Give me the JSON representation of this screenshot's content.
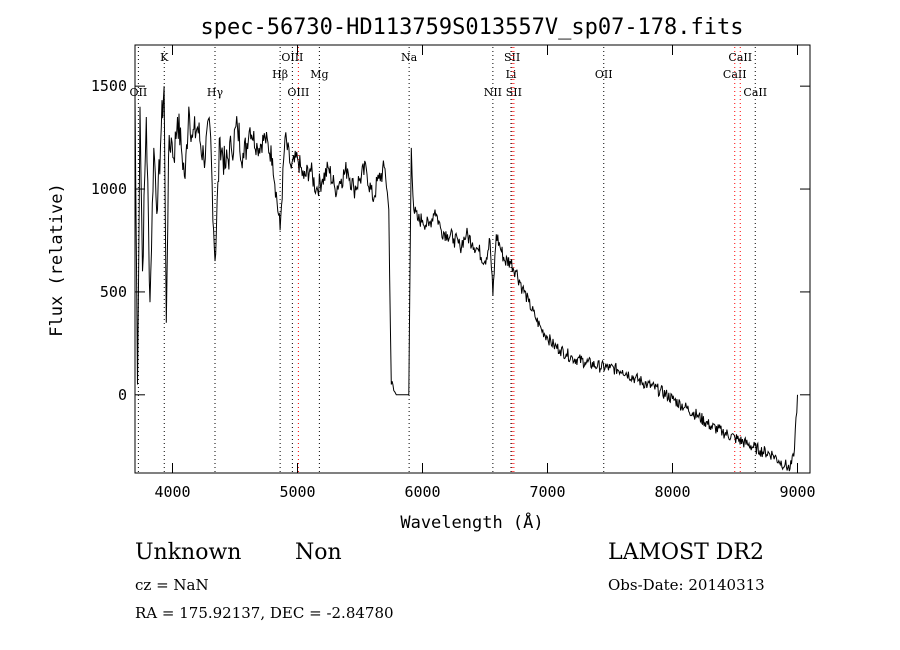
{
  "chart_data": {
    "type": "line",
    "title": "spec-56730-HD113759S013557V_sp07-178.fits",
    "xlabel": "Wavelength (Å)",
    "ylabel": "Flux (relative)",
    "xlim": [
      3700,
      9100
    ],
    "ylim": [
      -380,
      1700
    ],
    "xticks": [
      4000,
      5000,
      6000,
      7000,
      8000,
      9000
    ],
    "yticks": [
      0,
      500,
      1000,
      1500
    ],
    "grid": false,
    "series": [
      {
        "x": [
          3700,
          3720,
          3740,
          3760,
          3790,
          3820,
          3850,
          3880,
          3910,
          3933,
          3950,
          3968,
          3990,
          4010,
          4040,
          4070,
          4101,
          4130,
          4160,
          4200,
          4250,
          4300,
          4340,
          4380,
          4420,
          4470,
          4520,
          4570,
          4620,
          4680,
          4740,
          4800,
          4861,
          4900,
          4950,
          5000,
          5050,
          5100,
          5150,
          5200,
          5250,
          5300,
          5350,
          5400,
          5450,
          5500,
          5550,
          5600,
          5650,
          5700,
          5730,
          5750,
          5770,
          5790,
          5810,
          5830,
          5850,
          5870,
          5890,
          5910,
          5930,
          5960,
          6000,
          6050,
          6100,
          6150,
          6200,
          6250,
          6300,
          6350,
          6400,
          6450,
          6500,
          6540,
          6563,
          6590,
          6620,
          6660,
          6700,
          6750,
          6800,
          6850,
          6900,
          6950,
          7000,
          7050,
          7100,
          7150,
          7200,
          7300,
          7400,
          7500,
          7600,
          7700,
          7800,
          7900,
          8000,
          8100,
          8200,
          8300,
          8400,
          8500,
          8600,
          8700,
          8800,
          8850,
          8900,
          8940,
          8970,
          9000
        ],
        "y": [
          1450,
          50,
          1400,
          600,
          1350,
          450,
          1200,
          900,
          1300,
          1500,
          350,
          1150,
          1250,
          1150,
          1350,
          1200,
          1050,
          1400,
          1250,
          1300,
          1150,
          1300,
          650,
          1250,
          1100,
          1200,
          1300,
          1150,
          1300,
          1200,
          1250,
          1150,
          800,
          1250,
          1100,
          1150,
          1050,
          1100,
          1000,
          1050,
          1100,
          1000,
          1050,
          1100,
          1000,
          1050,
          1100,
          950,
          1050,
          1100,
          900,
          50,
          20,
          0,
          0,
          0,
          0,
          0,
          0,
          1200,
          900,
          850,
          850,
          820,
          900,
          800,
          780,
          760,
          720,
          780,
          740,
          700,
          650,
          750,
          480,
          780,
          720,
          650,
          650,
          600,
          520,
          450,
          380,
          320,
          280,
          240,
          220,
          200,
          180,
          160,
          140,
          130,
          120,
          80,
          50,
          20,
          -20,
          -60,
          -100,
          -150,
          -180,
          -210,
          -240,
          -270,
          -290,
          -320,
          -340,
          -360,
          -300,
          0
        ]
      }
    ],
    "line_markers": [
      {
        "label": "K",
        "x": 3934,
        "row": "top",
        "color": "#000000"
      },
      {
        "label": "OII",
        "x": 3727,
        "row": "third",
        "color": "#000000"
      },
      {
        "label": "Hγ",
        "x": 4340,
        "row": "third",
        "color": "#000000"
      },
      {
        "label": "OIII",
        "x": 4959,
        "row": "top",
        "color": "#000000"
      },
      {
        "label": "Hβ",
        "x": 4861,
        "row": "second",
        "color": "#000000"
      },
      {
        "label": "OIII",
        "x": 5007,
        "row": "third",
        "color": "#ff0000"
      },
      {
        "label": "Mg",
        "x": 5175,
        "row": "second",
        "color": "#000000"
      },
      {
        "label": "Na",
        "x": 5893,
        "row": "top",
        "color": "#000000"
      },
      {
        "label": "SII",
        "x": 6717,
        "row": "top",
        "color": "#ff0000"
      },
      {
        "label": "Li",
        "x": 6708,
        "row": "second",
        "color": "#000000"
      },
      {
        "label": "NII",
        "x": 6563,
        "row": "third",
        "color": "#000000"
      },
      {
        "label": "SII",
        "x": 6731,
        "row": "third",
        "color": "#ff0000"
      },
      {
        "label": "OII",
        "x": 7450,
        "row": "second",
        "color": "#000000"
      },
      {
        "label": "CaII",
        "x": 8542,
        "row": "top",
        "color": "#ff0000"
      },
      {
        "label": "CaII",
        "x": 8498,
        "row": "second",
        "color": "#ff0000"
      },
      {
        "label": "CaII",
        "x": 8662,
        "row": "third",
        "color": "#000000"
      }
    ]
  },
  "info": {
    "class_label": "Unknown",
    "subclass_label": "Non",
    "survey": "LAMOST DR2",
    "redshift": "cz = NaN",
    "obs_date": "Obs-Date: 20140313",
    "coords": "RA = 175.92137, DEC =  -2.84780"
  }
}
